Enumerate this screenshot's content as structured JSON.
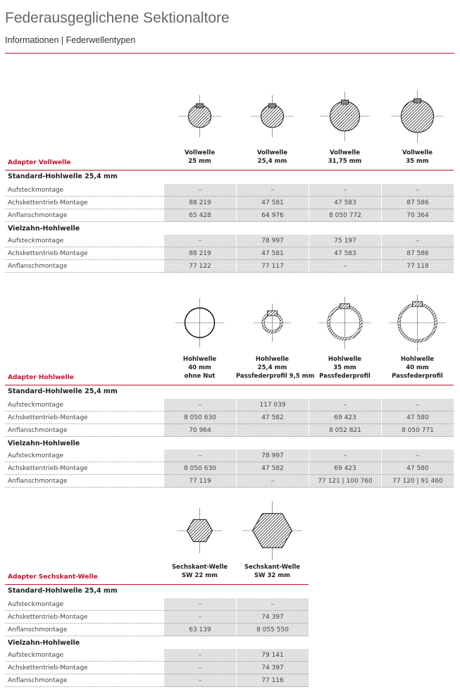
{
  "header": {
    "title": "Federausgeglichene Sektionaltore",
    "subtitle": "Informationen | Federwellentypen"
  },
  "sections": [
    {
      "label": "Adapter Vollwelle",
      "columns": [
        {
          "lines": [
            "Vollwelle",
            "25 mm"
          ]
        },
        {
          "lines": [
            "Vollwelle",
            "25,4 mm"
          ]
        },
        {
          "lines": [
            "Vollwelle",
            "31,75 mm"
          ]
        },
        {
          "lines": [
            "Vollwelle",
            "35 mm"
          ]
        }
      ],
      "groups": [
        {
          "title": "Standard-Hohlwelle 25,4 mm",
          "rows": [
            {
              "label": "Aufsteckmontage",
              "cells": [
                "–",
                "–",
                "–",
                "–"
              ]
            },
            {
              "label": "Achskettentrieb-Montage",
              "cells": [
                "88 219",
                "47 581",
                "47 583",
                "87 586"
              ]
            },
            {
              "label": "Anflanschmontage",
              "cells": [
                "65 428",
                "64 976",
                "8 050 772",
                "70 364"
              ]
            }
          ]
        },
        {
          "title": "Vielzahn-Hohlwelle",
          "rows": [
            {
              "label": "Aufsteckmontage",
              "cells": [
                "–",
                "78 997",
                "75 197",
                "–"
              ]
            },
            {
              "label": "Achskettentrieb-Montage",
              "cells": [
                "88 219",
                "47 581",
                "47 583",
                "87 586"
              ]
            },
            {
              "label": "Anflanschmontage",
              "cells": [
                "77 122",
                "77 117",
                "–",
                "77 118"
              ]
            }
          ]
        }
      ]
    },
    {
      "label": "Adapter Hohlwelle",
      "columns": [
        {
          "lines": [
            "Hohlwelle",
            "40 mm",
            "ohne Nut"
          ]
        },
        {
          "lines": [
            "Hohlwelle",
            "25,4 mm",
            "Passfederprofil 9,5 mm"
          ]
        },
        {
          "lines": [
            "Hohlwelle",
            "35 mm",
            "Passfederprofil"
          ]
        },
        {
          "lines": [
            "Hohlwelle",
            "40 mm",
            "Passfederprofil"
          ]
        }
      ],
      "groups": [
        {
          "title": "Standard-Hohlwelle 25,4 mm",
          "rows": [
            {
              "label": "Aufsteckmontage",
              "cells": [
                "–",
                "117 039",
                "–",
                "–"
              ]
            },
            {
              "label": "Achskettentrieb-Montage",
              "cells": [
                "8 050 630",
                "47 582",
                "69 423",
                "47 580"
              ]
            },
            {
              "label": "Anflanschmontage",
              "cells": [
                "70 964",
                null,
                "8 052 821",
                "8 050 771"
              ]
            }
          ]
        },
        {
          "title": "Vielzahn-Hohlwelle",
          "rows": [
            {
              "label": "Aufsteckmontage",
              "cells": [
                "–",
                "78 997",
                "–",
                "–"
              ]
            },
            {
              "label": "Achskettentrieb-Montage",
              "cells": [
                "8 050 630",
                "47 582",
                "69 423",
                "47 580"
              ]
            },
            {
              "label": "Anflanschmontage",
              "cells": [
                "77 119",
                "–",
                "77 121 | 100 760",
                "77 120 | 91 460"
              ]
            }
          ]
        }
      ]
    },
    {
      "label": "Adapter Sechskant-Welle",
      "columns": [
        {
          "lines": [
            "Sechskant-Welle",
            "SW 22 mm"
          ]
        },
        {
          "lines": [
            "Sechskant-Welle",
            "SW 32 mm"
          ]
        }
      ],
      "groups": [
        {
          "title": "Standard-Hohlwelle 25,4 mm",
          "rows": [
            {
              "label": "Aufsteckmontage",
              "cells": [
                "–",
                "–"
              ]
            },
            {
              "label": "Achskettentrieb-Montage",
              "cells": [
                "–",
                "74 397"
              ]
            },
            {
              "label": "Anflanschmontage",
              "cells": [
                "63 139",
                "8 055 550"
              ]
            }
          ]
        },
        {
          "title": "Vielzahn-Hohlwelle",
          "rows": [
            {
              "label": "Aufsteckmontage",
              "cells": [
                "–",
                "79 141"
              ]
            },
            {
              "label": "Achskettentrieb-Montage",
              "cells": [
                "–",
                "74 397"
              ]
            },
            {
              "label": "Anflanschmontage",
              "cells": [
                "–",
                "77 116"
              ]
            }
          ]
        }
      ]
    }
  ]
}
